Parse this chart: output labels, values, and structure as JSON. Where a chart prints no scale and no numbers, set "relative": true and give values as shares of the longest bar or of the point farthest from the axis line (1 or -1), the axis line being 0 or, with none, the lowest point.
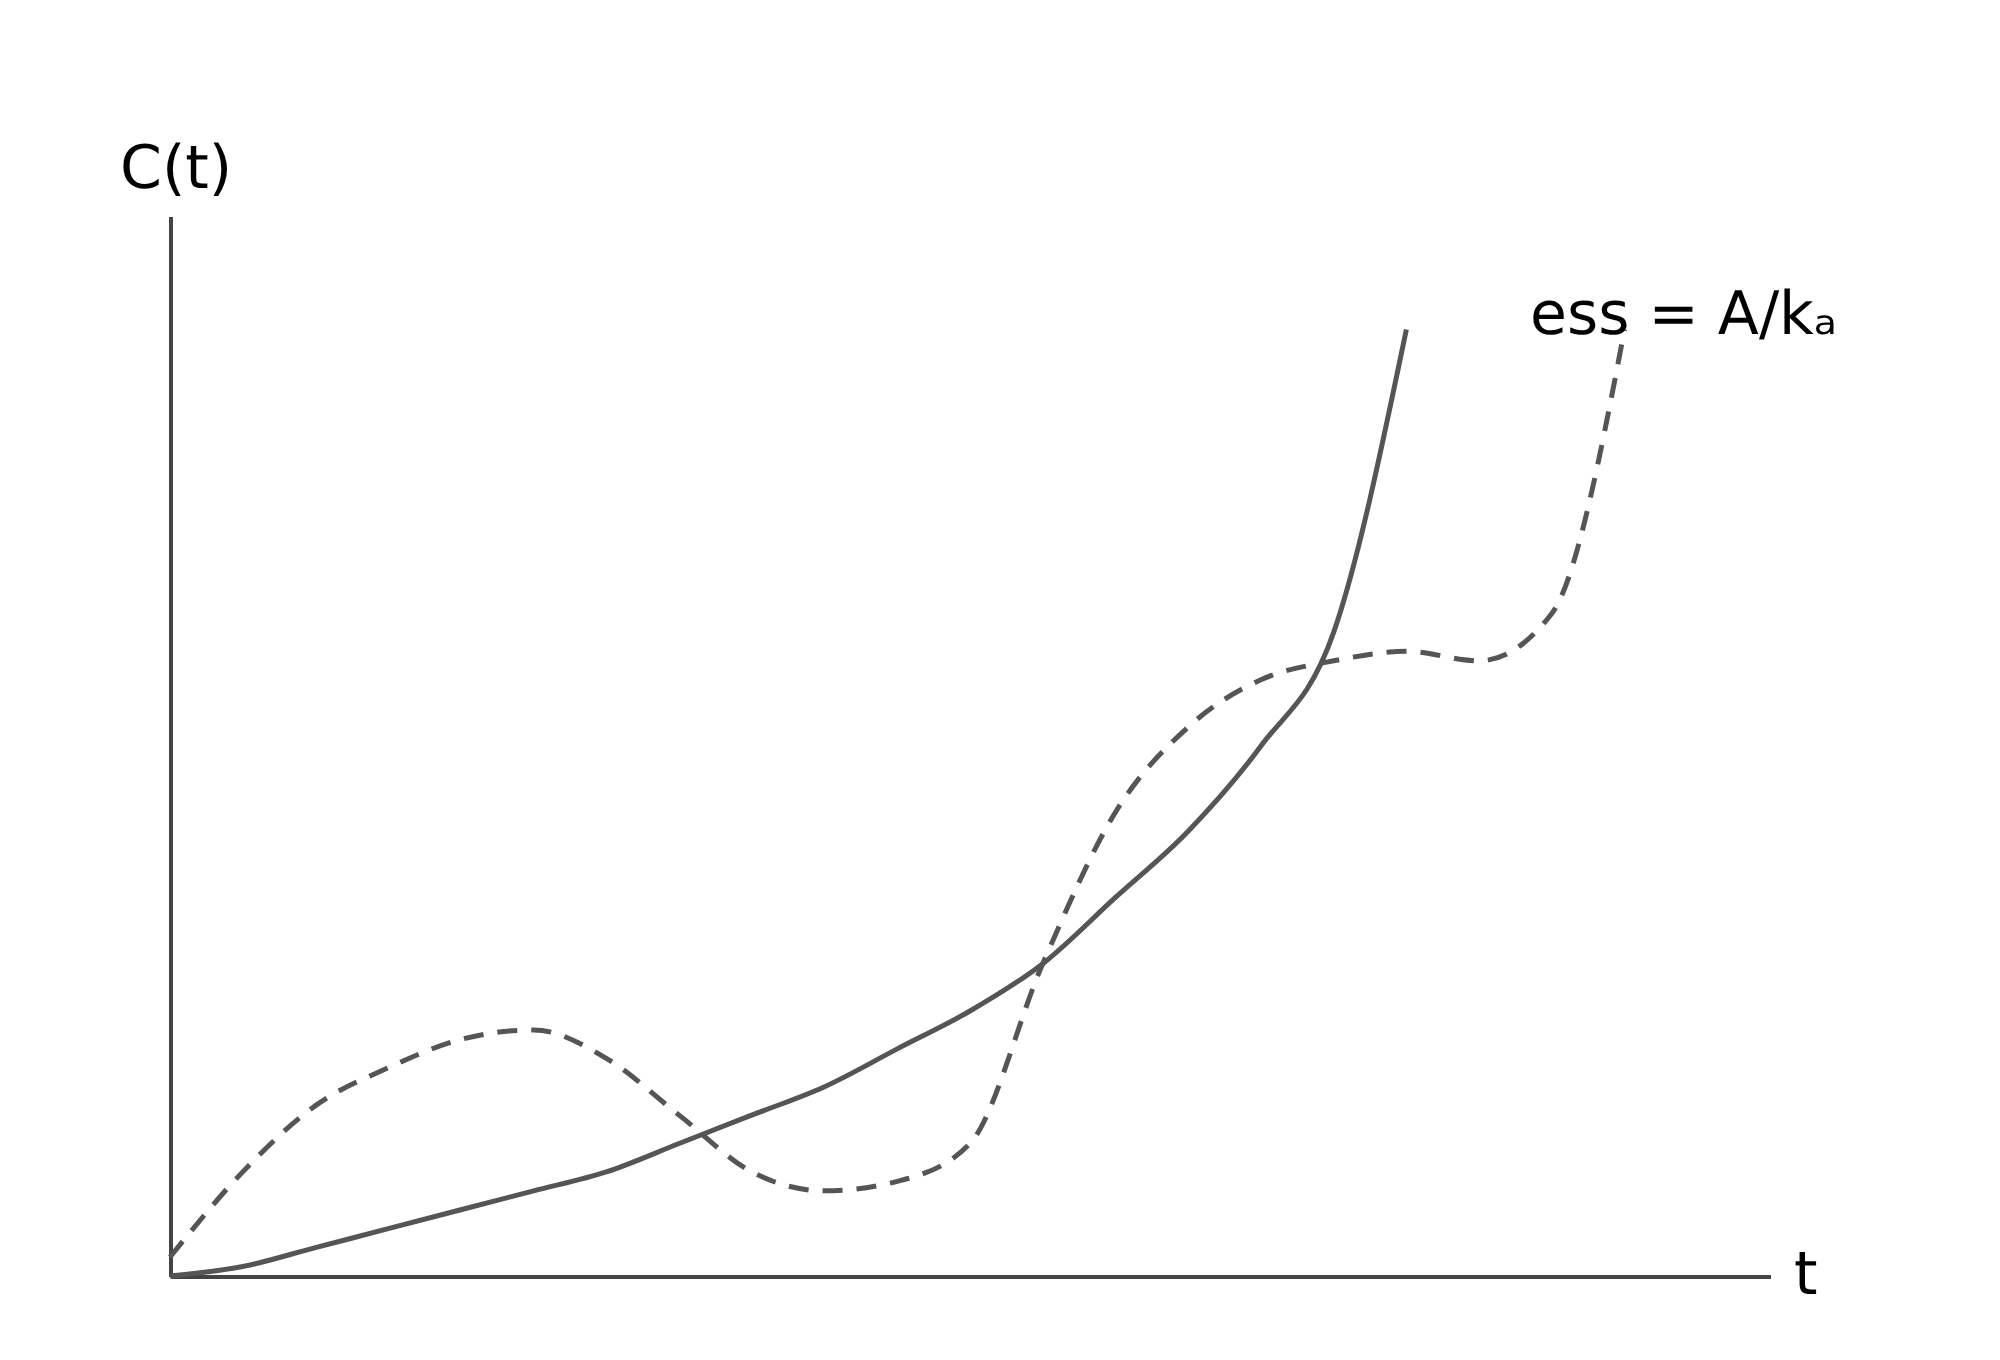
{
  "chart_data": {
    "type": "line",
    "relative": true,
    "ylabel": "C(t)",
    "xlabel": "t",
    "categories": [
      null,
      null,
      null,
      null,
      null,
      null,
      null,
      null,
      null,
      null,
      null,
      null,
      null,
      null,
      null,
      null,
      null,
      null,
      null,
      null,
      null
    ],
    "series": [
      {
        "color": "#555555",
        "line_style": "solid",
        "values": [
          0,
          0.01,
          0.03,
          0.05,
          0.07,
          0.09,
          0.11,
          0.14,
          0.17,
          0.2,
          0.24,
          0.28,
          0.33,
          0.4,
          0.47,
          0.56,
          0.68,
          1.0,
          null,
          null,
          null
        ]
      },
      {
        "color": "#555555",
        "line_style": "dashed",
        "values": [
          0.02,
          0.11,
          0.18,
          0.22,
          0.25,
          0.26,
          0.23,
          0.17,
          0.11,
          0.09,
          0.1,
          0.14,
          0.33,
          0.49,
          0.58,
          0.63,
          0.65,
          0.66,
          0.65,
          0.7,
          1.0
        ]
      }
    ],
    "annotations": [
      "ess = A/kₐ"
    ],
    "tick_labels": false
  }
}
